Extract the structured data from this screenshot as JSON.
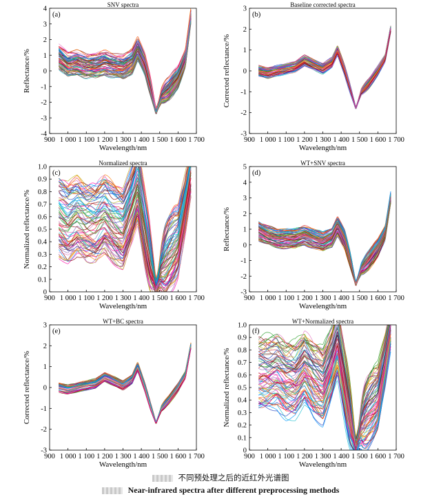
{
  "chart_data": [
    {
      "type": "line",
      "panel_label": "(a)",
      "title": "SNV spectra",
      "xlabel": "Wavelength/nm",
      "ylabel": "Reflectance/%",
      "xlim": [
        900,
        1700
      ],
      "ylim": [
        -4,
        4
      ],
      "xticks": [
        900,
        1000,
        1100,
        1200,
        1300,
        1400,
        1500,
        1600,
        1700
      ],
      "xtick_labels": [
        "900",
        "1 000",
        "1 100",
        "1 200",
        "1 300",
        "1 400",
        "1 500",
        "1 600",
        "1 700"
      ],
      "yticks": [
        -4,
        -3,
        -2,
        -1,
        0,
        1,
        2,
        3,
        4
      ],
      "ytick_labels": [
        "-4",
        "-3",
        "-2",
        "-1",
        "0",
        "1",
        "2",
        "3",
        "4"
      ],
      "x": [
        950,
        1000,
        1050,
        1100,
        1150,
        1200,
        1250,
        1300,
        1350,
        1380,
        1420,
        1450,
        1480,
        1510,
        1550,
        1600,
        1640,
        1670
      ],
      "profile_mean": [
        0.9,
        0.4,
        0.5,
        0.3,
        0.3,
        0.5,
        0.3,
        0.2,
        0.6,
        1.4,
        0.4,
        -1.0,
        -2.6,
        -1.6,
        -1.2,
        -0.4,
        0.8,
        3.5
      ],
      "spread": 0.8,
      "n_spectra": 80
    },
    {
      "type": "line",
      "panel_label": "(b)",
      "title": "Baseline corrected spectra",
      "xlabel": "Wavelength/nm",
      "ylabel": "Corrected reflectance/%",
      "xlim": [
        900,
        1700
      ],
      "ylim": [
        -3,
        3
      ],
      "xticks": [
        900,
        1000,
        1100,
        1200,
        1300,
        1400,
        1500,
        1600,
        1700
      ],
      "xtick_labels": [
        "900",
        "1 000",
        "1 100",
        "1 200",
        "1 300",
        "1 400",
        "1 500",
        "1 600",
        "1 700"
      ],
      "yticks": [
        -3,
        -2,
        -1,
        0,
        1,
        2,
        3
      ],
      "ytick_labels": [
        "-3",
        "-2",
        "-1",
        "0",
        "1",
        "2",
        "3"
      ],
      "x": [
        950,
        1000,
        1050,
        1100,
        1150,
        1200,
        1250,
        1300,
        1350,
        1380,
        1420,
        1450,
        1480,
        1510,
        1550,
        1600,
        1640,
        1670
      ],
      "profile_mean": [
        0.0,
        -0.1,
        0.0,
        0.1,
        0.2,
        0.5,
        0.3,
        0.1,
        0.4,
        1.0,
        0.0,
        -0.9,
        -1.8,
        -1.0,
        -0.6,
        0.0,
        0.6,
        2.0
      ],
      "spread": 0.25,
      "n_spectra": 60
    },
    {
      "type": "line",
      "panel_label": "(c)",
      "title": "Normalized spectra",
      "xlabel": "Wavelength/nm",
      "ylabel": "Normalized reflectance/%",
      "xlim": [
        900,
        1700
      ],
      "ylim": [
        0,
        1.0
      ],
      "xticks": [
        900,
        1000,
        1100,
        1200,
        1300,
        1400,
        1500,
        1600,
        1700
      ],
      "xtick_labels": [
        "900",
        "1 000",
        "1 100",
        "1 200",
        "1 300",
        "1 400",
        "1 500",
        "1 600",
        "1 700"
      ],
      "yticks": [
        0,
        0.1,
        0.2,
        0.3,
        0.4,
        0.5,
        0.6,
        0.7,
        0.8,
        0.9,
        1.0
      ],
      "ytick_labels": [
        "0",
        "0.1",
        "0.2",
        "0.3",
        "0.4",
        "0.5",
        "0.6",
        "0.7",
        "0.8",
        "0.9",
        "1.0"
      ],
      "x": [
        950,
        1000,
        1050,
        1100,
        1150,
        1200,
        1250,
        1300,
        1350,
        1380,
        1420,
        1450,
        1480,
        1510,
        1550,
        1600,
        1640,
        1670
      ],
      "profile_mean": [
        0.6,
        0.55,
        0.6,
        0.55,
        0.55,
        0.62,
        0.55,
        0.5,
        0.7,
        0.85,
        0.5,
        0.25,
        0.03,
        0.2,
        0.3,
        0.4,
        0.7,
        0.95
      ],
      "spread": 0.3,
      "n_spectra": 80
    },
    {
      "type": "line",
      "panel_label": "(d)",
      "title": "WT+SNV spectra",
      "xlabel": "Wavelength/nm",
      "ylabel": "Reflectance/%",
      "xlim": [
        900,
        1700
      ],
      "ylim": [
        -3,
        5
      ],
      "xticks": [
        900,
        1000,
        1100,
        1200,
        1300,
        1400,
        1500,
        1600,
        1700
      ],
      "xtick_labels": [
        "900",
        "1 000",
        "1 100",
        "1 200",
        "1 300",
        "1 400",
        "1 500",
        "1 600",
        "1 700"
      ],
      "yticks": [
        -3,
        -2,
        -1,
        0,
        1,
        2,
        3,
        4,
        5
      ],
      "ytick_labels": [
        "-3",
        "-2",
        "-1",
        "0",
        "1",
        "2",
        "3",
        "4",
        "5"
      ],
      "x": [
        950,
        1000,
        1050,
        1100,
        1150,
        1200,
        1250,
        1300,
        1350,
        1380,
        1420,
        1450,
        1480,
        1510,
        1550,
        1600,
        1640,
        1670
      ],
      "profile_mean": [
        0.9,
        0.6,
        0.4,
        0.4,
        0.4,
        0.6,
        0.4,
        0.2,
        0.5,
        1.2,
        0.3,
        -1.0,
        -2.5,
        -1.5,
        -1.0,
        -0.2,
        0.8,
        3.0
      ],
      "spread": 0.6,
      "n_spectra": 80
    },
    {
      "type": "line",
      "panel_label": "(e)",
      "title": "WT+BC spectra",
      "xlabel": "Wavelength/nm",
      "ylabel": "Corrected reflectance/%",
      "xlim": [
        900,
        1700
      ],
      "ylim": [
        -3,
        3
      ],
      "xticks": [
        900,
        1000,
        1100,
        1200,
        1300,
        1400,
        1500,
        1600,
        1700
      ],
      "xtick_labels": [
        "900",
        "1 000",
        "1 100",
        "1 200",
        "1 300",
        "1 400",
        "1 500",
        "1 600",
        "1 700"
      ],
      "yticks": [
        -3,
        -2,
        -1,
        0,
        1,
        2,
        3
      ],
      "ytick_labels": [
        "-3",
        "-2",
        "-1",
        "0",
        "1",
        "2",
        "3"
      ],
      "x": [
        950,
        1000,
        1050,
        1100,
        1150,
        1200,
        1250,
        1300,
        1350,
        1380,
        1420,
        1450,
        1480,
        1510,
        1550,
        1600,
        1640,
        1670
      ],
      "profile_mean": [
        0.0,
        -0.1,
        0.0,
        0.1,
        0.2,
        0.5,
        0.3,
        0.1,
        0.4,
        1.0,
        0.0,
        -0.9,
        -1.7,
        -1.0,
        -0.6,
        0.0,
        0.6,
        2.0
      ],
      "spread": 0.22,
      "n_spectra": 60
    },
    {
      "type": "line",
      "panel_label": "(f)",
      "title": "WT+Normalized spectra",
      "xlabel": "Wavelength/nm",
      "ylabel": "Normalized reflectance/%",
      "xlim": [
        900,
        1700
      ],
      "ylim": [
        0,
        1.0
      ],
      "xticks": [
        900,
        1000,
        1100,
        1200,
        1300,
        1400,
        1500,
        1600,
        1700
      ],
      "xtick_labels": [
        "900",
        "1 000",
        "1 100",
        "1 200",
        "1 300",
        "1 400",
        "1 500",
        "1 600",
        "1 700"
      ],
      "yticks": [
        0,
        0.1,
        0.2,
        0.3,
        0.4,
        0.5,
        0.6,
        0.7,
        0.8,
        0.9,
        1.0
      ],
      "ytick_labels": [
        "0",
        "0.1",
        "0.2",
        "0.3",
        "0.4",
        "0.5",
        "0.6",
        "0.7",
        "0.8",
        "0.9",
        "1.0"
      ],
      "x": [
        950,
        1000,
        1050,
        1100,
        1150,
        1200,
        1250,
        1300,
        1350,
        1380,
        1420,
        1450,
        1480,
        1510,
        1550,
        1600,
        1640,
        1670
      ],
      "profile_mean": [
        0.6,
        0.6,
        0.62,
        0.55,
        0.55,
        0.65,
        0.55,
        0.5,
        0.7,
        0.85,
        0.5,
        0.25,
        0.02,
        0.2,
        0.3,
        0.4,
        0.7,
        0.98
      ],
      "spread": 0.3,
      "n_spectra": 80
    }
  ],
  "caption": {
    "chinese": "不同预处理之后的近红外光谱图",
    "english": "Near-infrared spectra after different preprocessing methods"
  },
  "series_palette": [
    "#1f3fbf",
    "#d62728",
    "#2ca02c",
    "#ff7f0e",
    "#9467bd",
    "#17becf",
    "#e377c2",
    "#8c564b",
    "#bcbd22",
    "#7f0000",
    "#0099ff",
    "#ff00aa"
  ]
}
